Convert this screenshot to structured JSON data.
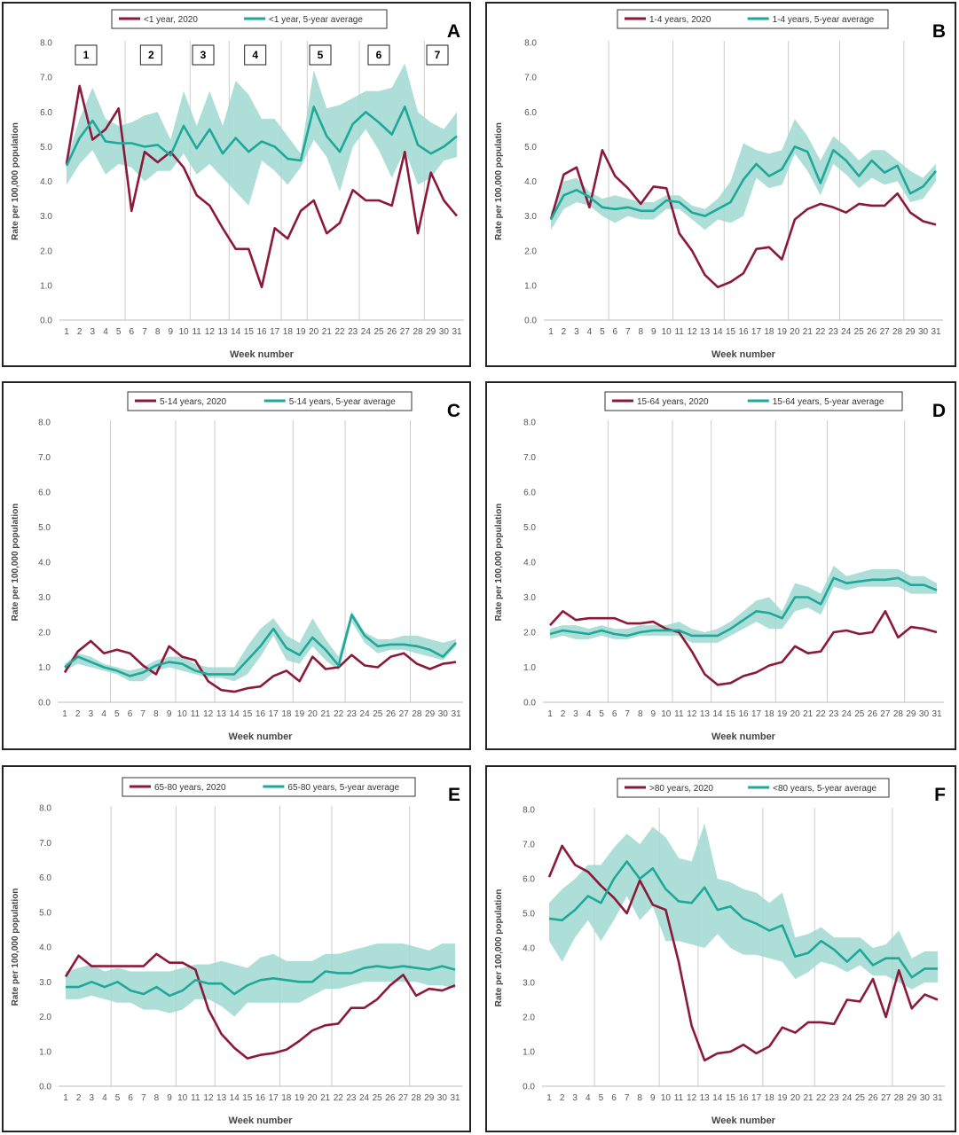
{
  "common": {
    "x_label": "Week number",
    "y_label": "Rate per 100,000 population",
    "x_ticks": [
      1,
      2,
      3,
      4,
      5,
      6,
      7,
      8,
      9,
      10,
      11,
      12,
      13,
      14,
      15,
      16,
      17,
      18,
      19,
      20,
      21,
      22,
      23,
      24,
      25,
      26,
      27,
      28,
      29,
      30,
      31
    ],
    "y_ticks": [
      "0.0",
      "1.0",
      "2.0",
      "3.0",
      "4.0",
      "5.0",
      "6.0",
      "7.0",
      "8.0"
    ],
    "colors": {
      "series_2020": "#8b1a3a",
      "series_avg": "#1fa89a",
      "band": "#9fd8d0",
      "gridline": "#cccccc"
    }
  },
  "chart_data": [
    {
      "letter": "A",
      "type": "line",
      "xlabel": "Week number",
      "ylabel": "Rate per 100,000 population",
      "ylim": [
        0,
        8
      ],
      "legend_position": "top-center",
      "period_labels": [
        {
          "label": "1",
          "week": 2.5
        },
        {
          "label": "2",
          "week": 7.5
        },
        {
          "label": "3",
          "week": 11.5
        },
        {
          "label": "4",
          "week": 15.5
        },
        {
          "label": "5",
          "week": 20.5
        },
        {
          "label": "6",
          "week": 25
        },
        {
          "label": "7",
          "week": 29.5
        }
      ],
      "vlines": [
        5,
        10,
        13,
        17,
        19,
        23,
        28
      ],
      "x": [
        1,
        2,
        3,
        4,
        5,
        6,
        7,
        8,
        9,
        10,
        11,
        12,
        13,
        14,
        15,
        16,
        17,
        18,
        19,
        20,
        21,
        22,
        23,
        24,
        25,
        26,
        27,
        28,
        29,
        30,
        31
      ],
      "series": [
        {
          "name": "<1 year, 2020",
          "values": [
            4.5,
            6.75,
            5.2,
            5.5,
            6.1,
            3.15,
            4.85,
            4.55,
            4.85,
            4.4,
            3.6,
            3.3,
            2.65,
            2.05,
            2.05,
            0.95,
            2.65,
            2.35,
            3.15,
            3.45,
            2.5,
            2.8,
            3.75,
            3.45,
            3.45,
            3.3,
            4.85,
            2.5,
            4.25,
            3.45,
            3.0
          ]
        },
        {
          "name": "<1 year, 5-year average",
          "values": [
            4.45,
            5.25,
            5.75,
            5.15,
            5.1,
            5.1,
            5.0,
            5.05,
            4.75,
            5.6,
            4.95,
            5.5,
            4.8,
            5.25,
            4.85,
            5.15,
            5.0,
            4.65,
            4.6,
            6.15,
            5.3,
            4.85,
            5.65,
            6.0,
            5.7,
            5.35,
            6.15,
            5.05,
            4.8,
            5.0,
            5.3
          ]
        }
      ],
      "band": {
        "upper": [
          4.6,
          5.8,
          6.7,
          5.8,
          5.6,
          5.7,
          5.9,
          6.0,
          5.2,
          6.6,
          5.6,
          6.6,
          5.6,
          6.9,
          6.5,
          5.8,
          5.8,
          5.3,
          4.8,
          7.2,
          6.1,
          6.2,
          6.4,
          6.6,
          6.6,
          6.7,
          7.4,
          6.0,
          5.7,
          5.5,
          6.0
        ],
        "lower": [
          3.9,
          4.5,
          4.9,
          4.2,
          4.5,
          4.4,
          4.0,
          4.3,
          4.3,
          4.8,
          4.2,
          4.5,
          4.1,
          3.7,
          3.3,
          4.6,
          4.3,
          3.9,
          4.4,
          5.2,
          4.7,
          3.7,
          5.0,
          5.5,
          4.9,
          4.1,
          4.9,
          3.9,
          4.1,
          4.6,
          4.7
        ]
      }
    },
    {
      "letter": "B",
      "type": "line",
      "xlabel": "Week number",
      "ylabel": "Rate per 100,000 population",
      "ylim": [
        0,
        8
      ],
      "legend_position": "top-center",
      "vlines": [
        5,
        10,
        14,
        19,
        23,
        28
      ],
      "x": [
        1,
        2,
        3,
        4,
        5,
        6,
        7,
        8,
        9,
        10,
        11,
        12,
        13,
        14,
        15,
        16,
        17,
        18,
        19,
        20,
        21,
        22,
        23,
        24,
        25,
        26,
        27,
        28,
        29,
        30,
        31
      ],
      "series": [
        {
          "name": "1-4 years, 2020",
          "values": [
            2.9,
            4.2,
            4.4,
            3.25,
            4.9,
            4.15,
            3.8,
            3.35,
            3.85,
            3.8,
            2.5,
            2.0,
            1.3,
            0.95,
            1.1,
            1.35,
            2.05,
            2.1,
            1.75,
            2.9,
            3.2,
            3.35,
            3.25,
            3.1,
            3.35,
            3.3,
            3.3,
            3.65,
            3.1,
            2.85,
            2.75
          ]
        },
        {
          "name": "1-4 years, 5-year average",
          "values": [
            2.9,
            3.6,
            3.75,
            3.55,
            3.25,
            3.2,
            3.25,
            3.15,
            3.15,
            3.45,
            3.4,
            3.1,
            3.0,
            3.2,
            3.4,
            4.05,
            4.5,
            4.15,
            4.35,
            5.0,
            4.85,
            3.95,
            4.9,
            4.6,
            4.15,
            4.6,
            4.25,
            4.45,
            3.65,
            3.85,
            4.3
          ]
        }
      ],
      "band": {
        "upper": [
          3.1,
          4.0,
          4.1,
          3.7,
          3.5,
          3.6,
          3.5,
          3.4,
          3.4,
          3.6,
          3.6,
          3.3,
          3.2,
          3.5,
          4.0,
          5.1,
          4.9,
          4.8,
          4.9,
          5.8,
          5.3,
          4.6,
          5.3,
          5.0,
          4.6,
          4.9,
          4.9,
          4.6,
          4.3,
          4.1,
          4.5
        ]
      },
      "band_lower": [
        2.6,
        3.2,
        3.4,
        3.3,
        3.0,
        2.8,
        3.0,
        2.9,
        2.9,
        3.2,
        3.2,
        2.9,
        2.6,
        2.9,
        2.8,
        3.0,
        4.1,
        3.8,
        3.9,
        4.8,
        4.3,
        3.6,
        4.5,
        4.2,
        3.8,
        4.1,
        3.9,
        4.0,
        3.4,
        3.5,
        4.0
      ]
    },
    {
      "letter": "C",
      "type": "line",
      "xlabel": "Week number",
      "ylabel": "Rate per 100,000 population",
      "ylim": [
        0,
        8
      ],
      "legend_position": "top-center",
      "vlines": [
        4,
        9,
        12,
        18,
        22,
        27
      ],
      "x": [
        1,
        2,
        3,
        4,
        5,
        6,
        7,
        8,
        9,
        10,
        11,
        12,
        13,
        14,
        15,
        16,
        17,
        18,
        19,
        20,
        21,
        22,
        23,
        24,
        25,
        26,
        27,
        28,
        29,
        30,
        31
      ],
      "series": [
        {
          "name": "5-14 years, 2020",
          "values": [
            0.85,
            1.45,
            1.75,
            1.4,
            1.5,
            1.4,
            1.05,
            0.8,
            1.6,
            1.3,
            1.2,
            0.6,
            0.35,
            0.3,
            0.4,
            0.45,
            0.75,
            0.9,
            0.6,
            1.3,
            0.95,
            1.0,
            1.35,
            1.05,
            1.0,
            1.3,
            1.4,
            1.1,
            0.95,
            1.1,
            1.15
          ]
        },
        {
          "name": "5-14 years, 5-year average",
          "values": [
            1.0,
            1.3,
            1.15,
            1.0,
            0.9,
            0.75,
            0.85,
            1.05,
            1.15,
            1.1,
            0.9,
            0.8,
            0.8,
            0.8,
            1.2,
            1.6,
            2.1,
            1.55,
            1.35,
            1.85,
            1.5,
            1.05,
            2.5,
            1.9,
            1.6,
            1.65,
            1.65,
            1.6,
            1.5,
            1.3,
            1.7
          ]
        }
      ],
      "band": {
        "upper": [
          1.1,
          1.4,
          1.3,
          1.1,
          1.0,
          0.9,
          1.0,
          1.2,
          1.3,
          1.3,
          1.1,
          1.0,
          1.0,
          1.0,
          1.6,
          2.1,
          2.4,
          1.9,
          1.7,
          2.4,
          1.8,
          1.3,
          2.6,
          2.0,
          1.8,
          1.8,
          1.9,
          1.9,
          1.8,
          1.7,
          1.8
        ],
        "lower": [
          0.9,
          1.1,
          1.0,
          0.9,
          0.8,
          0.6,
          0.6,
          0.9,
          1.0,
          0.9,
          0.8,
          0.7,
          0.7,
          0.6,
          0.8,
          1.3,
          1.9,
          1.2,
          1.1,
          1.6,
          1.2,
          0.9,
          2.3,
          1.7,
          1.4,
          1.5,
          1.5,
          1.4,
          1.3,
          1.2,
          1.6
        ]
      }
    },
    {
      "letter": "D",
      "type": "line",
      "xlabel": "Week number",
      "ylabel": "Rate per 100,000 population",
      "ylim": [
        0,
        8
      ],
      "legend_position": "top-center",
      "vlines": [
        5,
        10,
        13,
        18,
        22,
        28
      ],
      "x": [
        1,
        2,
        3,
        4,
        5,
        6,
        7,
        8,
        9,
        10,
        11,
        12,
        13,
        14,
        15,
        16,
        17,
        18,
        19,
        20,
        21,
        22,
        23,
        24,
        25,
        26,
        27,
        28,
        29,
        30,
        31
      ],
      "series": [
        {
          "name": "15-64 years, 2020",
          "values": [
            2.2,
            2.6,
            2.35,
            2.4,
            2.4,
            2.4,
            2.25,
            2.25,
            2.3,
            2.1,
            2.0,
            1.45,
            0.8,
            0.5,
            0.55,
            0.75,
            0.85,
            1.05,
            1.15,
            1.6,
            1.4,
            1.45,
            2.0,
            2.05,
            1.95,
            2.0,
            2.6,
            1.85,
            2.15,
            2.1,
            2.0
          ]
        },
        {
          "name": "15-64 years, 5-year average",
          "values": [
            1.95,
            2.05,
            2.0,
            1.95,
            2.05,
            1.95,
            1.9,
            2.0,
            2.05,
            2.05,
            2.05,
            1.9,
            1.9,
            1.9,
            2.1,
            2.35,
            2.6,
            2.55,
            2.4,
            3.0,
            3.0,
            2.8,
            3.55,
            3.4,
            3.45,
            3.5,
            3.5,
            3.55,
            3.35,
            3.35,
            3.2
          ]
        }
      ],
      "band": {
        "upper": [
          2.1,
          2.2,
          2.2,
          2.1,
          2.2,
          2.1,
          2.1,
          2.2,
          2.2,
          2.2,
          2.3,
          2.1,
          2.0,
          2.1,
          2.3,
          2.6,
          2.9,
          3.0,
          2.6,
          3.4,
          3.3,
          3.1,
          3.9,
          3.6,
          3.7,
          3.8,
          3.8,
          3.8,
          3.6,
          3.6,
          3.4
        ],
        "lower": [
          1.8,
          1.9,
          1.8,
          1.8,
          1.9,
          1.8,
          1.8,
          1.9,
          1.9,
          1.9,
          1.9,
          1.7,
          1.7,
          1.7,
          1.9,
          2.1,
          2.3,
          2.1,
          2.1,
          2.6,
          2.7,
          2.5,
          3.3,
          3.2,
          3.3,
          3.3,
          3.3,
          3.3,
          3.1,
          3.1,
          3.1
        ]
      }
    },
    {
      "letter": "E",
      "type": "line",
      "xlabel": "Week number",
      "ylabel": "Rate per 100,000 population",
      "ylim": [
        0,
        8
      ],
      "legend_position": "top-center",
      "vlines": [
        4,
        9,
        12,
        17,
        21,
        27
      ],
      "x": [
        1,
        2,
        3,
        4,
        5,
        6,
        7,
        8,
        9,
        10,
        11,
        12,
        13,
        14,
        15,
        16,
        17,
        18,
        19,
        20,
        21,
        22,
        23,
        24,
        25,
        26,
        27,
        28,
        29,
        30,
        31
      ],
      "series": [
        {
          "name": "65-80 years, 2020",
          "values": [
            3.15,
            3.75,
            3.45,
            3.45,
            3.45,
            3.45,
            3.45,
            3.8,
            3.55,
            3.55,
            3.35,
            2.2,
            1.5,
            1.1,
            0.8,
            0.9,
            0.95,
            1.05,
            1.3,
            1.6,
            1.75,
            1.8,
            2.25,
            2.25,
            2.5,
            2.9,
            3.2,
            2.6,
            2.8,
            2.75,
            2.9
          ]
        },
        {
          "name": "65-80 years, 5-year average",
          "values": [
            2.85,
            2.85,
            3.0,
            2.85,
            3.0,
            2.75,
            2.65,
            2.85,
            2.6,
            2.75,
            3.05,
            2.95,
            2.95,
            2.65,
            2.9,
            3.05,
            3.1,
            3.05,
            3.0,
            3.0,
            3.3,
            3.25,
            3.25,
            3.4,
            3.45,
            3.4,
            3.45,
            3.4,
            3.35,
            3.45,
            3.35
          ]
        }
      ],
      "band": {
        "upper": [
          3.3,
          3.4,
          3.5,
          3.3,
          3.4,
          3.3,
          3.3,
          3.3,
          3.3,
          3.4,
          3.5,
          3.5,
          3.6,
          3.5,
          3.4,
          3.7,
          3.8,
          3.6,
          3.6,
          3.6,
          3.8,
          3.8,
          3.9,
          4.0,
          4.1,
          4.1,
          4.1,
          4.0,
          3.9,
          4.1,
          4.1
        ],
        "lower": [
          2.5,
          2.5,
          2.6,
          2.5,
          2.4,
          2.4,
          2.2,
          2.2,
          2.1,
          2.2,
          2.5,
          2.5,
          2.3,
          2.0,
          2.4,
          2.4,
          2.4,
          2.4,
          2.4,
          2.6,
          2.8,
          2.8,
          2.9,
          3.0,
          3.0,
          3.0,
          3.0,
          3.0,
          2.9,
          2.9,
          2.8
        ]
      }
    },
    {
      "letter": "F",
      "type": "line",
      "xlabel": "Week number",
      "ylabel": "Rate per 100,000 population",
      "ylim": [
        0,
        8
      ],
      "legend_position": "top-center",
      "vlines": [
        4,
        9,
        12,
        17,
        21,
        27
      ],
      "x": [
        1,
        2,
        3,
        4,
        5,
        6,
        7,
        8,
        9,
        10,
        11,
        12,
        13,
        14,
        15,
        16,
        17,
        18,
        19,
        20,
        21,
        22,
        23,
        24,
        25,
        26,
        27,
        28,
        29,
        30,
        31
      ],
      "series": [
        {
          "name": ">80 years, 2020",
          "values": [
            6.05,
            6.95,
            6.4,
            6.2,
            5.8,
            5.45,
            5.0,
            5.95,
            5.25,
            5.1,
            3.6,
            1.75,
            0.75,
            0.95,
            1.0,
            1.2,
            0.95,
            1.15,
            1.7,
            1.55,
            1.85,
            1.85,
            1.8,
            2.5,
            2.45,
            3.1,
            2.0,
            3.35,
            2.25,
            2.65,
            2.5
          ]
        },
        {
          "name": "<80 years, 5-year average",
          "values": [
            4.85,
            4.8,
            5.1,
            5.5,
            5.3,
            6.0,
            6.5,
            6.0,
            6.3,
            5.7,
            5.35,
            5.3,
            5.75,
            5.1,
            5.2,
            4.85,
            4.7,
            4.5,
            4.65,
            3.75,
            3.85,
            4.2,
            3.95,
            3.6,
            3.95,
            3.5,
            3.7,
            3.7,
            3.15,
            3.4,
            3.4
          ]
        }
      ],
      "band": {
        "upper": [
          5.3,
          5.7,
          6.0,
          6.4,
          6.4,
          6.9,
          7.3,
          7.0,
          7.5,
          7.2,
          6.6,
          6.5,
          7.6,
          6.0,
          5.9,
          5.7,
          5.6,
          5.3,
          5.6,
          4.3,
          4.4,
          4.6,
          4.3,
          4.3,
          4.3,
          4.0,
          4.1,
          4.5,
          3.7,
          3.9,
          3.9
        ],
        "lower": [
          4.2,
          3.6,
          4.3,
          4.8,
          4.2,
          4.8,
          5.5,
          4.8,
          5.2,
          4.2,
          4.2,
          4.1,
          4.0,
          4.4,
          4.0,
          3.8,
          3.8,
          3.7,
          3.6,
          3.1,
          3.3,
          3.6,
          3.5,
          3.3,
          3.5,
          3.2,
          3.2,
          3.0,
          2.8,
          3.0,
          3.0
        ]
      }
    }
  ]
}
